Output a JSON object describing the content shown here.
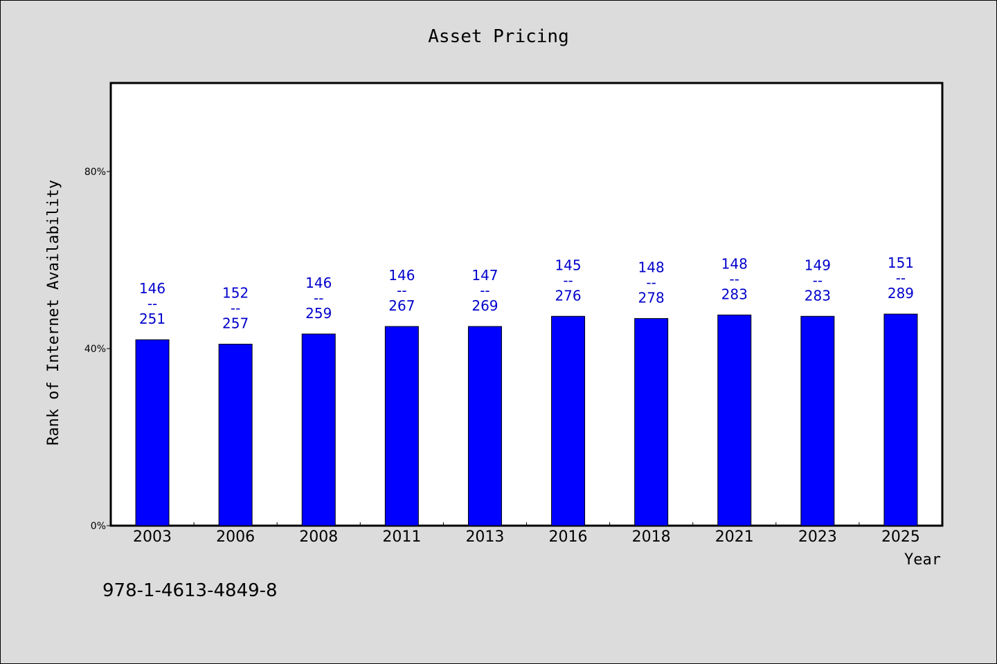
{
  "chart_data": {
    "type": "bar",
    "title": "Asset Pricing",
    "xlabel": "Year",
    "ylabel": "Rank of Internet Availability",
    "categories": [
      "2003",
      "2006",
      "2008",
      "2011",
      "2013",
      "2016",
      "2018",
      "2021",
      "2023",
      "2025"
    ],
    "values": [
      42,
      41,
      43.3,
      45,
      45,
      47.3,
      46.8,
      47.6,
      47.3,
      47.8
    ],
    "value_format": "percent",
    "ylim": [
      0,
      100
    ],
    "yticks": [
      0,
      40,
      80
    ],
    "ytick_labels": [
      "0%",
      "40%",
      "80%"
    ],
    "data_labels": [
      [
        "146",
        "--",
        "251"
      ],
      [
        "152",
        "--",
        "257"
      ],
      [
        "146",
        "--",
        "259"
      ],
      [
        "146",
        "--",
        "267"
      ],
      [
        "147",
        "--",
        "269"
      ],
      [
        "145",
        "--",
        "276"
      ],
      [
        "148",
        "--",
        "278"
      ],
      [
        "148",
        "--",
        "283"
      ],
      [
        "149",
        "--",
        "283"
      ],
      [
        "151",
        "--",
        "289"
      ]
    ],
    "grid": false,
    "legend": "none",
    "bar_color": "#0000ff",
    "label_color": "#0000cc",
    "plot_background": "#ffffff",
    "page_background": "#dcdcdc"
  },
  "footnote": "978-1-4613-4849-8"
}
